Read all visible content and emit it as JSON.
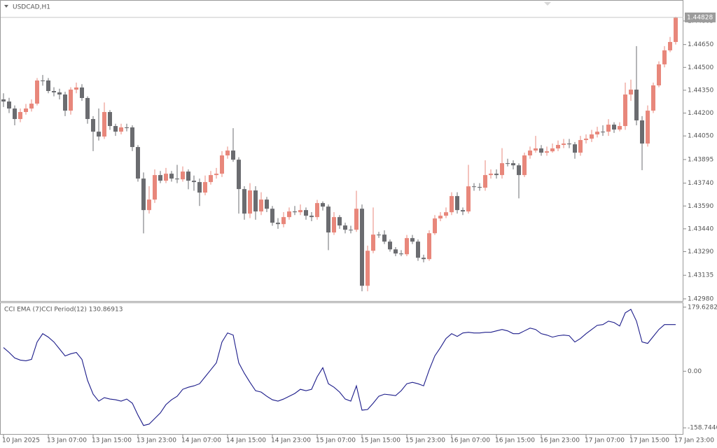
{
  "chart_data": [
    {
      "type": "candlestick",
      "title": "USDCAD,H1",
      "up_color": "#e8877b",
      "down_color": "#6b6c70",
      "categories": [
        "10 Jan 2025",
        null,
        null,
        null,
        null,
        null,
        null,
        null,
        "13 Jan 07:00",
        null,
        null,
        null,
        null,
        null,
        null,
        null,
        "13 Jan 15:00",
        null,
        null,
        null,
        null,
        null,
        null,
        null,
        "13 Jan 23:00",
        null,
        null,
        null,
        null,
        null,
        null,
        null,
        "14 Jan 07:00",
        null,
        null,
        null,
        null,
        null,
        null,
        null,
        "14 Jan 15:00",
        null,
        null,
        null,
        null,
        null,
        null,
        null,
        "14 Jan 23:00",
        null,
        null,
        null,
        null,
        null,
        null,
        null,
        "15 Jan 07:00",
        null,
        null,
        null,
        null,
        null,
        null,
        null,
        "15 Jan 15:00",
        null,
        null,
        null,
        null,
        null,
        null,
        null,
        "15 Jan 23:00",
        null,
        null,
        null,
        null,
        null,
        null,
        null,
        "16 Jan 07:00",
        null,
        null,
        null,
        null,
        null,
        null,
        null,
        "16 Jan 15:00",
        null,
        null,
        null,
        null,
        null,
        null,
        null,
        "16 Jan 23:00",
        null,
        null,
        null,
        null,
        null,
        null,
        null,
        "17 Jan 07:00",
        null,
        null,
        null,
        null,
        null,
        null,
        null,
        "17 Jan 15:00",
        null,
        null,
        null,
        null,
        null,
        null,
        null,
        "17 Jan 23:00"
      ],
      "open": [
        1.4429,
        1.44276,
        1.4423,
        1.44161,
        1.44207,
        1.4423,
        1.44262,
        1.44414,
        1.44414,
        1.44345,
        1.44336,
        1.44322,
        1.44216,
        1.44354,
        1.44368,
        1.44299,
        1.44161,
        1.44078,
        1.44046,
        1.44207,
        1.44115,
        1.44078,
        1.44106,
        1.44106,
        1.43977,
        1.4377,
        1.43563,
        1.43632,
        1.43793,
        1.43756,
        1.43802,
        1.4377,
        1.43765,
        1.43816,
        1.43756,
        1.43747,
        1.43678,
        1.43747,
        1.43793,
        1.43802,
        1.43922,
        1.43954,
        1.43894,
        1.43701,
        1.4354,
        1.43692,
        1.43554,
        1.43632,
        1.43572,
        1.4348,
        1.43471,
        1.43517,
        1.43554,
        1.43549,
        1.43563,
        1.43526,
        1.43517,
        1.43609,
        1.43586,
        1.43416,
        1.43517,
        1.43462,
        1.43434,
        1.43434,
        1.43572,
        1.43066,
        1.43296,
        1.43402,
        1.43402,
        1.43356,
        1.43305,
        1.43278,
        1.43273,
        1.43379,
        1.43356,
        1.4325,
        1.43241,
        1.43411,
        1.43508,
        1.43526,
        1.43549,
        1.43655,
        1.43563,
        1.43554,
        1.43719,
        1.43715,
        1.4371,
        1.43793,
        1.43802,
        1.43793,
        1.43871,
        1.43871,
        1.43857,
        1.43793,
        1.43922,
        1.43954,
        1.43968,
        1.4394,
        1.43949,
        1.43968,
        1.43991,
        1.44,
        1.43995,
        1.4394,
        1.44023,
        1.44032,
        1.4406,
        1.44078,
        1.44078,
        1.44124,
        1.44092,
        1.44115,
        1.44322,
        1.44354,
        1.44152,
        1.44,
        1.44216,
        1.44382,
        1.4452,
        1.44612,
        1.44667
      ],
      "high": [
        1.4433,
        1.443,
        1.4425,
        1.4423,
        1.4426,
        1.4429,
        1.4443,
        1.4445,
        1.4443,
        1.4437,
        1.4436,
        1.4434,
        1.4437,
        1.444,
        1.4439,
        1.4431,
        1.4418,
        1.4423,
        1.4427,
        1.4422,
        1.4413,
        1.4413,
        1.4413,
        1.4412,
        1.4399,
        1.4381,
        1.4372,
        1.4383,
        1.4382,
        1.4384,
        1.4382,
        1.4386,
        1.4385,
        1.4383,
        1.4379,
        1.4377,
        1.4379,
        1.4382,
        1.4384,
        1.4395,
        1.4398,
        1.44101,
        1.4391,
        1.4372,
        1.4374,
        1.4372,
        1.4368,
        1.4365,
        1.4359,
        1.4351,
        1.4355,
        1.4358,
        1.4359,
        1.436,
        1.4358,
        1.4355,
        1.4363,
        1.4362,
        1.436,
        1.4355,
        1.4353,
        1.4348,
        1.4346,
        1.4369,
        1.436,
        1.4333,
        1.4358,
        1.4342,
        1.4343,
        1.4337,
        1.4332,
        1.433,
        1.434,
        1.434,
        1.4337,
        1.4327,
        1.4343,
        1.4353,
        1.4355,
        1.4358,
        1.4368,
        1.4368,
        1.4358,
        1.4386,
        1.4374,
        1.4374,
        1.4389,
        1.4383,
        1.4383,
        1.4397,
        1.439,
        1.4389,
        1.4387,
        1.4394,
        1.4398,
        1.4405,
        1.4399,
        1.4398,
        1.44,
        1.4402,
        1.4403,
        1.4403,
        1.4401,
        1.4405,
        1.4406,
        1.4409,
        1.4411,
        1.4412,
        1.4416,
        1.4414,
        1.4414,
        1.444,
        1.4442,
        1.4464,
        1.4418,
        1.4425,
        1.444,
        1.4454,
        1.4464,
        1.447,
        1.44833
      ],
      "low": [
        1.4424,
        1.442,
        1.4412,
        1.4414,
        1.4419,
        1.4421,
        1.4425,
        1.4438,
        1.4433,
        1.4431,
        1.4429,
        1.4418,
        1.4419,
        1.4433,
        1.4428,
        1.4413,
        1.4395,
        1.4402,
        1.4403,
        1.4409,
        1.4405,
        1.4406,
        1.4408,
        1.4395,
        1.4375,
        1.4341,
        1.4354,
        1.4361,
        1.4374,
        1.4374,
        1.4375,
        1.4374,
        1.4375,
        1.437,
        1.4369,
        1.4359,
        1.4366,
        1.4373,
        1.4377,
        1.4378,
        1.439,
        1.4388,
        1.4354,
        1.435,
        1.4351,
        1.435,
        1.4353,
        1.4355,
        1.4346,
        1.4344,
        1.4345,
        1.435,
        1.4353,
        1.4353,
        1.435,
        1.4349,
        1.435,
        1.4356,
        1.433,
        1.434,
        1.4344,
        1.4341,
        1.4341,
        1.4342,
        1.4303,
        1.4303,
        1.4328,
        1.4338,
        1.4334,
        1.4329,
        1.4326,
        1.4326,
        1.4326,
        1.4334,
        1.4323,
        1.4322,
        1.4323,
        1.434,
        1.4349,
        1.4351,
        1.4353,
        1.4354,
        1.4353,
        1.4354,
        1.4369,
        1.4369,
        1.4369,
        1.4377,
        1.4377,
        1.4377,
        1.4385,
        1.4383,
        1.4364,
        1.4378,
        1.439,
        1.4394,
        1.4392,
        1.4392,
        1.4394,
        1.4395,
        1.4397,
        1.4397,
        1.439,
        1.4392,
        1.44,
        1.4401,
        1.4404,
        1.4405,
        1.4405,
        1.4407,
        1.4408,
        1.4409,
        1.4428,
        1.4412,
        1.43825,
        1.4398,
        1.442,
        1.4437,
        1.445,
        1.446,
        1.4465
      ],
      "close": [
        1.44276,
        1.4423,
        1.44161,
        1.44207,
        1.4423,
        1.44262,
        1.44414,
        1.44414,
        1.44345,
        1.44336,
        1.44322,
        1.44216,
        1.44354,
        1.44368,
        1.44299,
        1.44161,
        1.44078,
        1.44046,
        1.44207,
        1.44115,
        1.44078,
        1.44106,
        1.44106,
        1.43977,
        1.4377,
        1.43563,
        1.43632,
        1.43793,
        1.43756,
        1.43802,
        1.4377,
        1.43765,
        1.43816,
        1.43756,
        1.43747,
        1.43678,
        1.43747,
        1.43793,
        1.43802,
        1.43922,
        1.43954,
        1.43894,
        1.43701,
        1.4354,
        1.43692,
        1.43554,
        1.43632,
        1.43572,
        1.4348,
        1.43471,
        1.43517,
        1.43554,
        1.43549,
        1.43563,
        1.43526,
        1.43517,
        1.43609,
        1.43586,
        1.43416,
        1.43517,
        1.43462,
        1.43434,
        1.43434,
        1.43572,
        1.43066,
        1.43296,
        1.43402,
        1.43402,
        1.43356,
        1.43305,
        1.43278,
        1.43273,
        1.43379,
        1.43356,
        1.4325,
        1.43241,
        1.43411,
        1.43508,
        1.43526,
        1.43549,
        1.43655,
        1.43563,
        1.43554,
        1.43719,
        1.43715,
        1.4371,
        1.43793,
        1.43802,
        1.43793,
        1.43871,
        1.43871,
        1.43857,
        1.43793,
        1.43922,
        1.43954,
        1.43968,
        1.4394,
        1.43949,
        1.43968,
        1.43991,
        1.44,
        1.43995,
        1.4394,
        1.44023,
        1.44032,
        1.4406,
        1.44078,
        1.44078,
        1.44124,
        1.44092,
        1.44115,
        1.44322,
        1.44354,
        1.44152,
        1.44,
        1.44216,
        1.44382,
        1.4452,
        1.44612,
        1.44667,
        1.44828
      ],
      "last_price": {
        "value": 1.44828,
        "label": "1.44828"
      },
      "ylim": [
        1.42966,
        1.44938
      ],
      "yticks": [
        1.44805,
        {
          "value": 1.4465,
          "label": "1.44650"
        },
        {
          "value": 1.445,
          "label": "1.44500"
        },
        {
          "value": 1.4435,
          "label": "1.44350"
        },
        {
          "value": 1.442,
          "label": "1.44200"
        },
        {
          "value": 1.4405,
          "label": "1.44050"
        },
        1.43895,
        {
          "value": 1.4374,
          "label": "1.43740"
        },
        {
          "value": 1.4359,
          "label": "1.43590"
        },
        {
          "value": 1.4344,
          "label": "1.43440"
        },
        {
          "value": 1.4329,
          "label": "1.43290"
        },
        1.43135,
        {
          "value": 1.4298,
          "label": "1.42980"
        }
      ]
    },
    {
      "type": "line",
      "title": "CCI EMA (7)CCI Period(12) 130.86913",
      "color": "#1c1c8a",
      "values": [
        66.3,
        52.7,
        37.1,
        31.2,
        29.3,
        33.2,
        81.9,
        105.3,
        95.6,
        81.9,
        62.4,
        42.9,
        48.8,
        52.7,
        33.2,
        -25.4,
        -64.4,
        -83.9,
        -74.1,
        -78.0,
        -80.0,
        -83.9,
        -78.0,
        -89.7,
        -122.9,
        -152.1,
        -148.2,
        -132.6,
        -117.0,
        -93.6,
        -80.0,
        -70.2,
        -50.7,
        -44.9,
        -41.0,
        -35.1,
        -15.6,
        3.9,
        23.4,
        81.9,
        107.3,
        101.4,
        23.4,
        -5.9,
        -31.2,
        -54.6,
        -58.5,
        -70.2,
        -80.0,
        -83.9,
        -78.0,
        -70.2,
        -62.4,
        -50.7,
        -54.6,
        -50.7,
        -15.6,
        9.8,
        -35.1,
        -44.9,
        -58.5,
        -78.0,
        -83.9,
        -41.0,
        -109.2,
        -107.3,
        -89.7,
        -70.2,
        -64.4,
        -66.3,
        -68.3,
        -54.6,
        -35.1,
        -31.2,
        -35.1,
        -41.0,
        3.9,
        42.9,
        66.3,
        91.7,
        105.3,
        97.5,
        107.3,
        109.2,
        107.3,
        107.3,
        109.2,
        109.2,
        113.1,
        117.0,
        113.1,
        105.3,
        105.3,
        113.1,
        120.9,
        117.0,
        105.3,
        101.4,
        95.6,
        99.5,
        101.4,
        99.5,
        81.9,
        91.7,
        105.3,
        117.0,
        128.7,
        130.7,
        140.4,
        136.5,
        126.8,
        163.8,
        173.6,
        140.4,
        81.9,
        78.0,
        97.5,
        117.0,
        130.7,
        130.7,
        130.86913
      ],
      "ylim": [
        -176,
        191
      ],
      "yticks": [
        179.62821,
        {
          "value": 0,
          "label": "0.00"
        },
        -158.7446
      ]
    }
  ]
}
